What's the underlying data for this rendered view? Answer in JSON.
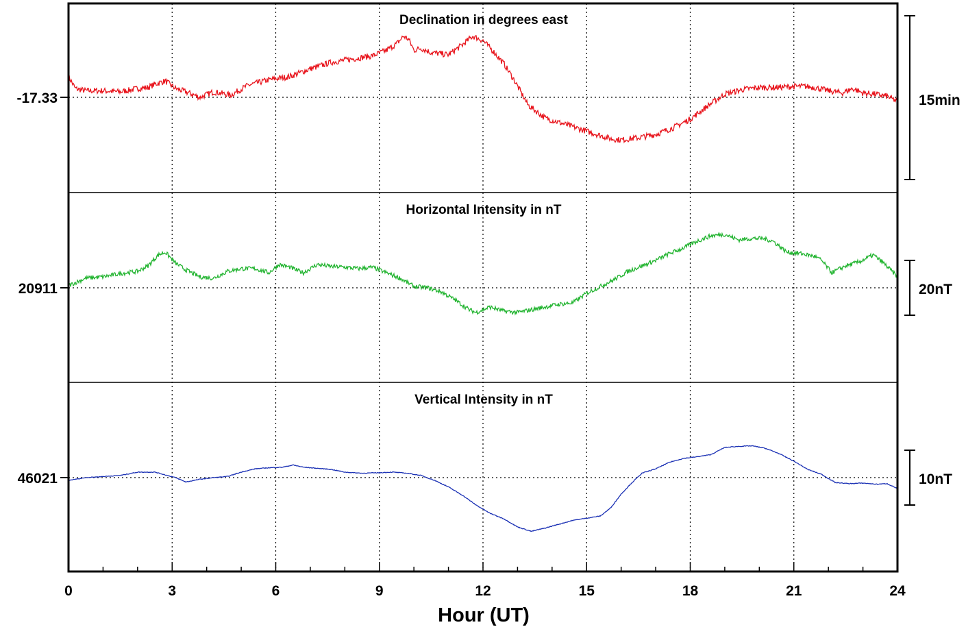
{
  "chart_data": {
    "type": "line",
    "xlabel": "Hour (UT)",
    "x_ticks": [
      "0",
      "3",
      "6",
      "9",
      "12",
      "15",
      "18",
      "21",
      "24"
    ],
    "xlim": [
      0,
      24
    ],
    "grid": "dotted vertical lines every 3 hours plus dotted baseline in each panel",
    "panels": [
      {
        "title": "Declination in degrees east",
        "color": "#e8141c",
        "baseline_label": "-17.33",
        "scale_label": "15min",
        "scale_span": 15,
        "unit": "arc minutes relative to baseline",
        "series": {
          "x": [
            0,
            0.2,
            0.5,
            1,
            1.5,
            2,
            2.3,
            2.5,
            2.8,
            3.1,
            3.4,
            3.8,
            4.2,
            4.7,
            5.2,
            5.8,
            6.4,
            7,
            7.6,
            8.2,
            8.8,
            9.2,
            9.5,
            9.7,
            9.85,
            10,
            10.2,
            10.5,
            11,
            11.4,
            11.7,
            12,
            12.3,
            12.6,
            12.9,
            13.3,
            13.8,
            14.3,
            14.8,
            15.3,
            15.7,
            16,
            16.5,
            17,
            17.5,
            18,
            18.5,
            19,
            19.5,
            20,
            20.5,
            21,
            21.3,
            21.6,
            22,
            22.4,
            22.7,
            23,
            23.3,
            23.7,
            24
          ],
          "values": [
            1.9,
            0.8,
            0.6,
            0.6,
            0.5,
            0.8,
            0.9,
            1.2,
            1.5,
            0.8,
            0.5,
            0.0,
            0.5,
            0.2,
            1.1,
            1.6,
            1.9,
            2.6,
            3.2,
            3.5,
            3.8,
            4.3,
            4.9,
            5.6,
            5.3,
            4.3,
            4.5,
            4.1,
            3.9,
            4.8,
            5.6,
            5.2,
            4.2,
            3.1,
            1.6,
            -0.7,
            -1.9,
            -2.4,
            -2.9,
            -3.4,
            -3.8,
            -3.9,
            -3.7,
            -3.4,
            -2.8,
            -2.0,
            -0.8,
            0.3,
            0.7,
            0.9,
            0.9,
            1.0,
            1.0,
            0.9,
            0.6,
            0.4,
            0.8,
            0.4,
            0.3,
            0.1,
            -0.4
          ]
        }
      },
      {
        "title": "Horizontal Intensity in nT",
        "color": "#22b430",
        "baseline_label": "20911",
        "scale_label": "20nT",
        "scale_span": 20,
        "unit": "nT relative to baseline",
        "series": {
          "x": [
            0,
            0.5,
            1,
            1.5,
            2,
            2.3,
            2.6,
            2.8,
            3.1,
            3.4,
            3.8,
            4.2,
            4.6,
            5,
            5.4,
            5.8,
            6.1,
            6.4,
            6.8,
            7.2,
            7.6,
            8,
            8.4,
            8.8,
            9.2,
            9.6,
            10,
            10.4,
            10.8,
            11.2,
            11.6,
            11.8,
            12.2,
            12.6,
            13,
            13.4,
            13.8,
            14.2,
            14.6,
            15,
            15.4,
            15.8,
            16.2,
            16.6,
            17,
            17.4,
            17.8,
            18.2,
            18.6,
            19,
            19.4,
            19.8,
            20.1,
            20.4,
            20.8,
            21.2,
            21.6,
            21.8,
            22.1,
            22.5,
            22.9,
            23.3,
            23.6,
            24
          ],
          "values": [
            0.8,
            3.5,
            4.0,
            5.2,
            6.0,
            8.0,
            12.0,
            13.0,
            9.0,
            6.5,
            4.0,
            3.5,
            6.0,
            7.0,
            7.0,
            5.5,
            8.5,
            7.5,
            5.5,
            8.5,
            7.8,
            7.5,
            7.0,
            7.5,
            5.5,
            3.5,
            0.5,
            0.0,
            -1.5,
            -4.5,
            -8.0,
            -9.0,
            -7.0,
            -8.5,
            -9.0,
            -8.0,
            -7.0,
            -6.0,
            -5.5,
            -2.0,
            0.5,
            3.0,
            6.0,
            8.0,
            10.0,
            12.5,
            14.5,
            17.0,
            19.0,
            19.5,
            17.5,
            18.0,
            18.0,
            17.0,
            13.0,
            12.5,
            11.5,
            10.0,
            5.5,
            8.0,
            9.5,
            12.0,
            9.0,
            4.0
          ]
        }
      },
      {
        "title": "Vertical Intensity in nT",
        "color": "#1a30b4",
        "baseline_label": "46021",
        "scale_label": "10nT",
        "scale_span": 10,
        "unit": "nT relative to baseline",
        "series": {
          "x": [
            0,
            0.5,
            1,
            1.5,
            2,
            2.5,
            2.8,
            3.1,
            3.4,
            3.8,
            4.2,
            4.6,
            5,
            5.4,
            5.8,
            6.2,
            6.5,
            6.8,
            7.2,
            7.6,
            8,
            8.5,
            9,
            9.4,
            9.8,
            10.2,
            10.6,
            11,
            11.4,
            11.8,
            12.2,
            12.6,
            13,
            13.4,
            13.8,
            14.2,
            14.6,
            15,
            15.2,
            15.4,
            15.7,
            16,
            16.3,
            16.6,
            17,
            17.4,
            17.8,
            18.2,
            18.6,
            19,
            19.4,
            19.8,
            20.2,
            20.6,
            21,
            21.4,
            21.8,
            22.2,
            22.6,
            23,
            23.4,
            23.7,
            24
          ],
          "values": [
            -0.5,
            0.0,
            0.2,
            0.4,
            1.0,
            1.0,
            0.5,
            0.0,
            -0.8,
            -0.3,
            0.0,
            0.2,
            1.0,
            1.6,
            1.8,
            1.9,
            2.3,
            1.9,
            1.7,
            1.5,
            1.0,
            0.8,
            0.9,
            1.0,
            0.8,
            0.4,
            -0.5,
            -1.7,
            -3.2,
            -5.0,
            -6.5,
            -7.5,
            -9.0,
            -9.8,
            -9.2,
            -8.5,
            -7.8,
            -7.4,
            -7.2,
            -7.0,
            -5.5,
            -3.0,
            -1.0,
            0.8,
            1.6,
            2.8,
            3.5,
            3.8,
            4.2,
            5.5,
            5.7,
            5.8,
            5.3,
            4.3,
            3.0,
            1.5,
            0.6,
            -0.9,
            -1.1,
            -1.0,
            -1.2,
            -1.1,
            -2.0
          ]
        }
      }
    ]
  }
}
